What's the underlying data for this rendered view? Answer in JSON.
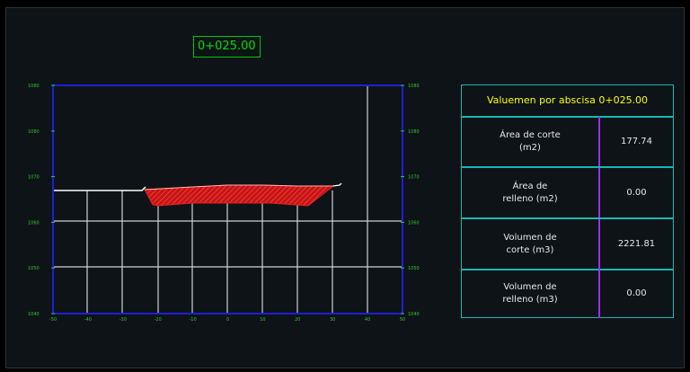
{
  "station_label": "0+025.00",
  "section": {
    "x_ticks": [
      "-50",
      "-40",
      "-30",
      "-20",
      "-10",
      "0",
      "10",
      "20",
      "30",
      "40",
      "50"
    ],
    "y_ticks": [
      "1080",
      "1080",
      "1070",
      "1060",
      "1050",
      "1040"
    ],
    "colors": {
      "frame": "#1f1fd6",
      "grid": "#d0d0d0",
      "tick_text": "#32c832",
      "cut_fill": "#c81414",
      "terrain": "#ffffff"
    }
  },
  "table": {
    "title": "Valuemen por abscisa 0+025.00",
    "rows": [
      {
        "label_1": "Área de corte",
        "label_2": "(m2)",
        "value": "177.74"
      },
      {
        "label_1": "Área de",
        "label_2": "relleno (m2)",
        "value": "0.00"
      },
      {
        "label_1": "Volumen de",
        "label_2": "corte (m3)",
        "value": "2221.81"
      },
      {
        "label_1": "Volumen de",
        "label_2": "relleno (m3)",
        "value": "0.00"
      }
    ]
  }
}
